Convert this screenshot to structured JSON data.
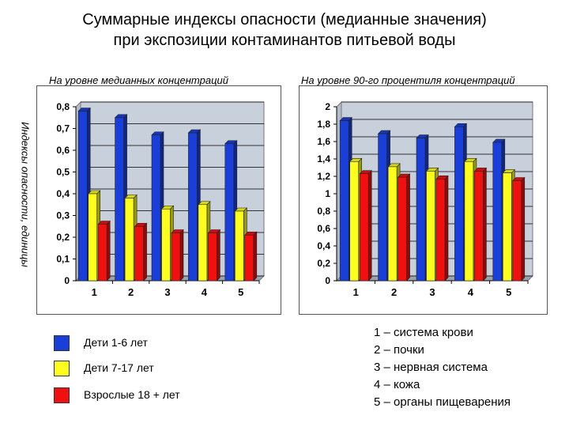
{
  "title_line1": "Суммарные индексы опасности (медианные значения)",
  "title_line2": "при экспозиции контаминантов питьевой воды",
  "shared_ylabel": "Индексы опасности, единицы",
  "colors": {
    "blue": "#1a3fd8",
    "yellow": "#fdfd1f",
    "red": "#ef1010",
    "plot_bg": "#c8d0dc",
    "outer_bg": "#ffffff"
  },
  "legend": [
    {
      "label": "Дети 1-6 лет",
      "color": "#1a3fd8"
    },
    {
      "label": "Дети 7-17 лет",
      "color": "#fdfd1f"
    },
    {
      "label": "Взрослые 18 + лет",
      "color": "#ef1010"
    }
  ],
  "systems": [
    "1 – система крови",
    "2 – почки",
    "3 – нервная система",
    "4 – кожа",
    "5 – органы пищеварения"
  ],
  "chart_data": [
    {
      "type": "bar",
      "title": "На уровне медианных концентраций",
      "ylabel": "Индексы опасности, единицы",
      "categories": [
        "1",
        "2",
        "3",
        "4",
        "5"
      ],
      "ylim": [
        0,
        0.8
      ],
      "yticks": [
        "0",
        "0,1",
        "0,2",
        "0,3",
        "0,4",
        "0,5",
        "0,6",
        "0,7",
        "0,8"
      ],
      "grid": true,
      "series": [
        {
          "name": "Дети 1-6 лет",
          "values": [
            0.78,
            0.75,
            0.67,
            0.68,
            0.63
          ]
        },
        {
          "name": "Дети 7-17 лет",
          "values": [
            0.4,
            0.38,
            0.33,
            0.35,
            0.32
          ]
        },
        {
          "name": "Взрослые 18 + лет",
          "values": [
            0.26,
            0.25,
            0.22,
            0.22,
            0.21
          ]
        }
      ]
    },
    {
      "type": "bar",
      "title": "На уровне 90-го процентиля концентраций",
      "categories": [
        "1",
        "2",
        "3",
        "4",
        "5"
      ],
      "ylim": [
        0,
        2
      ],
      "yticks": [
        "0",
        "0,2",
        "0,4",
        "0,6",
        "0,8",
        "1",
        "1,2",
        "1,4",
        "1,6",
        "1,8",
        "2"
      ],
      "grid": true,
      "series": [
        {
          "name": "Дети 1-6 лет",
          "values": [
            1.84,
            1.69,
            1.64,
            1.77,
            1.59
          ]
        },
        {
          "name": "Дети 7-17 лет",
          "values": [
            1.37,
            1.31,
            1.26,
            1.37,
            1.24
          ]
        },
        {
          "name": "Взрослые 18 + лет",
          "values": [
            1.23,
            1.19,
            1.17,
            1.26,
            1.15
          ]
        }
      ]
    }
  ]
}
